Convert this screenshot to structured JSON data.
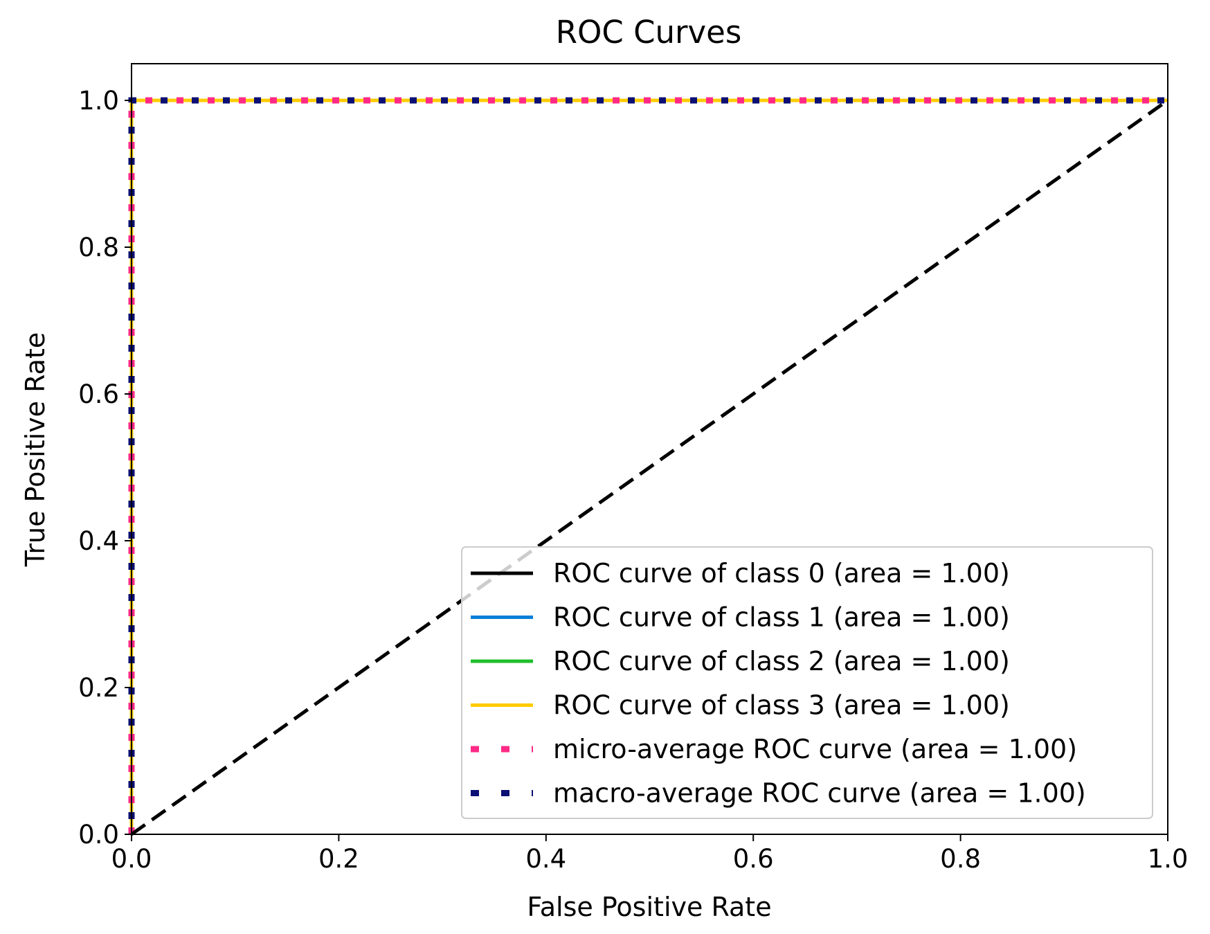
{
  "chart_data": {
    "type": "line",
    "title": "ROC Curves",
    "xlabel": "False Positive Rate",
    "ylabel": "True Positive Rate",
    "xlim": [
      0.0,
      1.0
    ],
    "ylim": [
      0.0,
      1.05
    ],
    "xticks": [
      0.0,
      0.2,
      0.4,
      0.6,
      0.8,
      1.0
    ],
    "yticks": [
      0.0,
      0.2,
      0.4,
      0.6,
      0.8,
      1.0
    ],
    "xtick_labels": [
      "0.0",
      "0.2",
      "0.4",
      "0.6",
      "0.8",
      "1.0"
    ],
    "ytick_labels": [
      "0.0",
      "0.2",
      "0.4",
      "0.6",
      "0.8",
      "1.0"
    ],
    "grid": false,
    "legend_position": "lower-right",
    "series": [
      {
        "name": "ROC curve of class 0 (area = 1.00)",
        "color": "#000000",
        "style": "solid",
        "x": [
          0.0,
          0.0,
          1.0
        ],
        "y": [
          0.0,
          1.0,
          1.0
        ]
      },
      {
        "name": "ROC curve of class 1 (area = 1.00)",
        "color": "#0a7fd8",
        "style": "solid",
        "x": [
          0.0,
          0.0,
          1.0
        ],
        "y": [
          0.0,
          1.0,
          1.0
        ]
      },
      {
        "name": "ROC curve of class 2 (area = 1.00)",
        "color": "#1fbf2a",
        "style": "solid",
        "x": [
          0.0,
          0.0,
          1.0
        ],
        "y": [
          0.0,
          1.0,
          1.0
        ]
      },
      {
        "name": "ROC curve of class 3 (area = 1.00)",
        "color": "#ffcc00",
        "style": "solid",
        "x": [
          0.0,
          0.0,
          1.0
        ],
        "y": [
          0.0,
          1.0,
          1.0
        ]
      },
      {
        "name": "micro-average ROC curve (area = 1.00)",
        "color": "#ff2a85",
        "style": "dotted",
        "x": [
          0.0,
          0.0,
          1.0
        ],
        "y": [
          0.0,
          1.0,
          1.0
        ]
      },
      {
        "name": "macro-average ROC curve (area = 1.00)",
        "color": "#0c0f73",
        "style": "dotted",
        "x": [
          0.0,
          0.0,
          1.0
        ],
        "y": [
          0.0,
          1.0,
          1.0
        ]
      }
    ],
    "reference_line": {
      "x": [
        0.0,
        1.0
      ],
      "y": [
        0.0,
        1.0
      ],
      "color": "#000000",
      "style": "dashed"
    }
  }
}
